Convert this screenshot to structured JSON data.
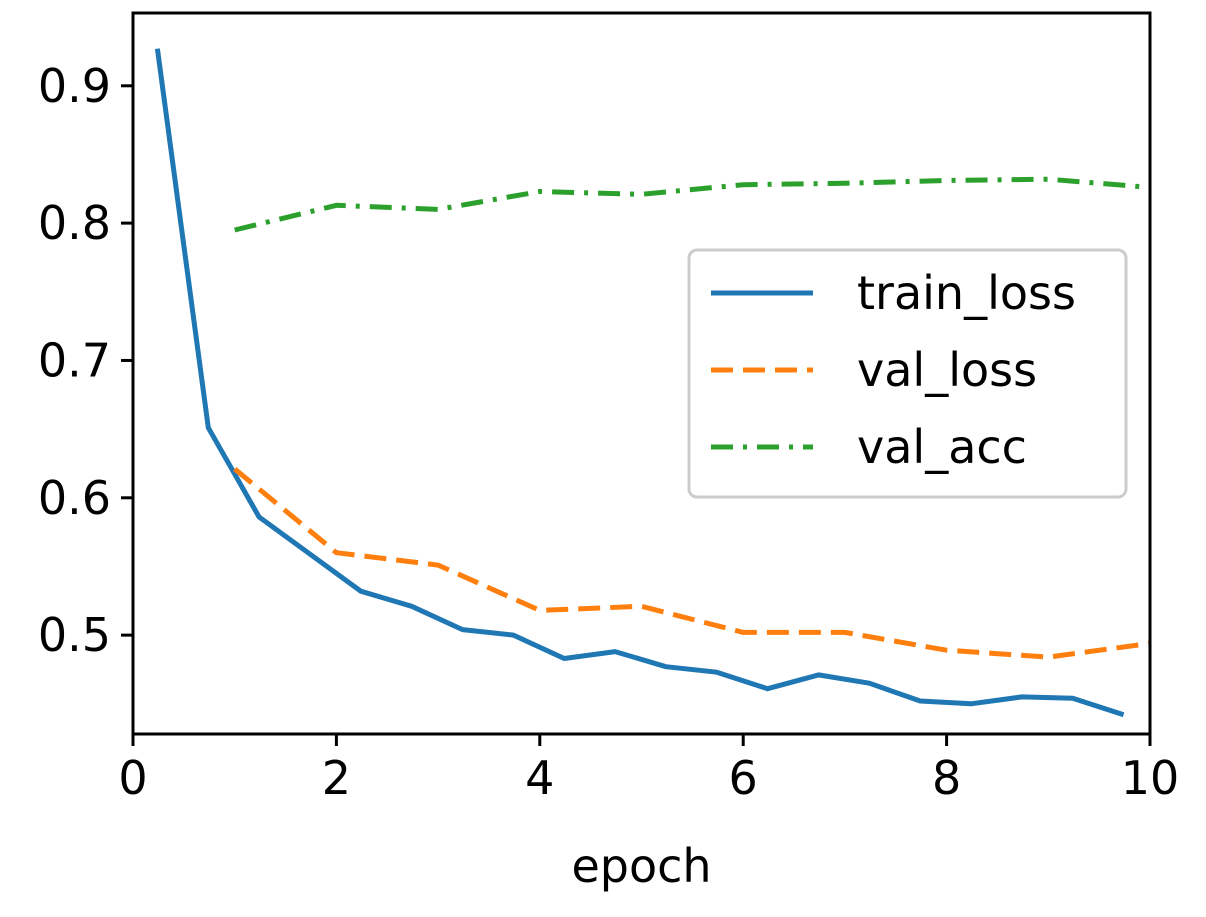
{
  "chart_data": {
    "type": "line",
    "title": "",
    "xlabel": "epoch",
    "ylabel": "",
    "xlim": [
      0,
      10
    ],
    "ylim": [
      0.428,
      0.953
    ],
    "xticks": [
      0,
      2,
      4,
      6,
      8,
      10
    ],
    "xtick_labels": [
      "0",
      "2",
      "4",
      "6",
      "8",
      "10"
    ],
    "yticks": [
      0.5,
      0.6,
      0.7,
      0.8,
      0.9
    ],
    "ytick_labels": [
      "0.5",
      "0.6",
      "0.7",
      "0.8",
      "0.9"
    ],
    "grid": false,
    "legend_position": "center-right",
    "series": [
      {
        "name": "train_loss",
        "color": "#1f77b4",
        "dash": "solid",
        "x": [
          0.24,
          0.74,
          1.24,
          1.74,
          2.24,
          2.74,
          3.24,
          3.74,
          4.24,
          4.74,
          5.24,
          5.74,
          6.24,
          6.74,
          7.24,
          7.74,
          8.24,
          8.74,
          9.24,
          9.74
        ],
        "y": [
          0.927,
          0.651,
          0.586,
          0.559,
          0.532,
          0.521,
          0.504,
          0.5,
          0.483,
          0.488,
          0.477,
          0.473,
          0.461,
          0.471,
          0.465,
          0.452,
          0.45,
          0.455,
          0.454,
          0.442
        ]
      },
      {
        "name": "val_loss",
        "color": "#ff7f0e",
        "dash": "dashed",
        "x": [
          1,
          2,
          3,
          4,
          5,
          6,
          7,
          8,
          9,
          10
        ],
        "y": [
          0.621,
          0.56,
          0.551,
          0.518,
          0.521,
          0.502,
          0.502,
          0.489,
          0.484,
          0.494
        ]
      },
      {
        "name": "val_acc",
        "color": "#2ca02c",
        "dash": "dashdot",
        "x": [
          1,
          2,
          3,
          4,
          5,
          6,
          7,
          8,
          9,
          10
        ],
        "y": [
          0.795,
          0.813,
          0.81,
          0.823,
          0.821,
          0.828,
          0.829,
          0.831,
          0.832,
          0.826
        ]
      }
    ]
  }
}
